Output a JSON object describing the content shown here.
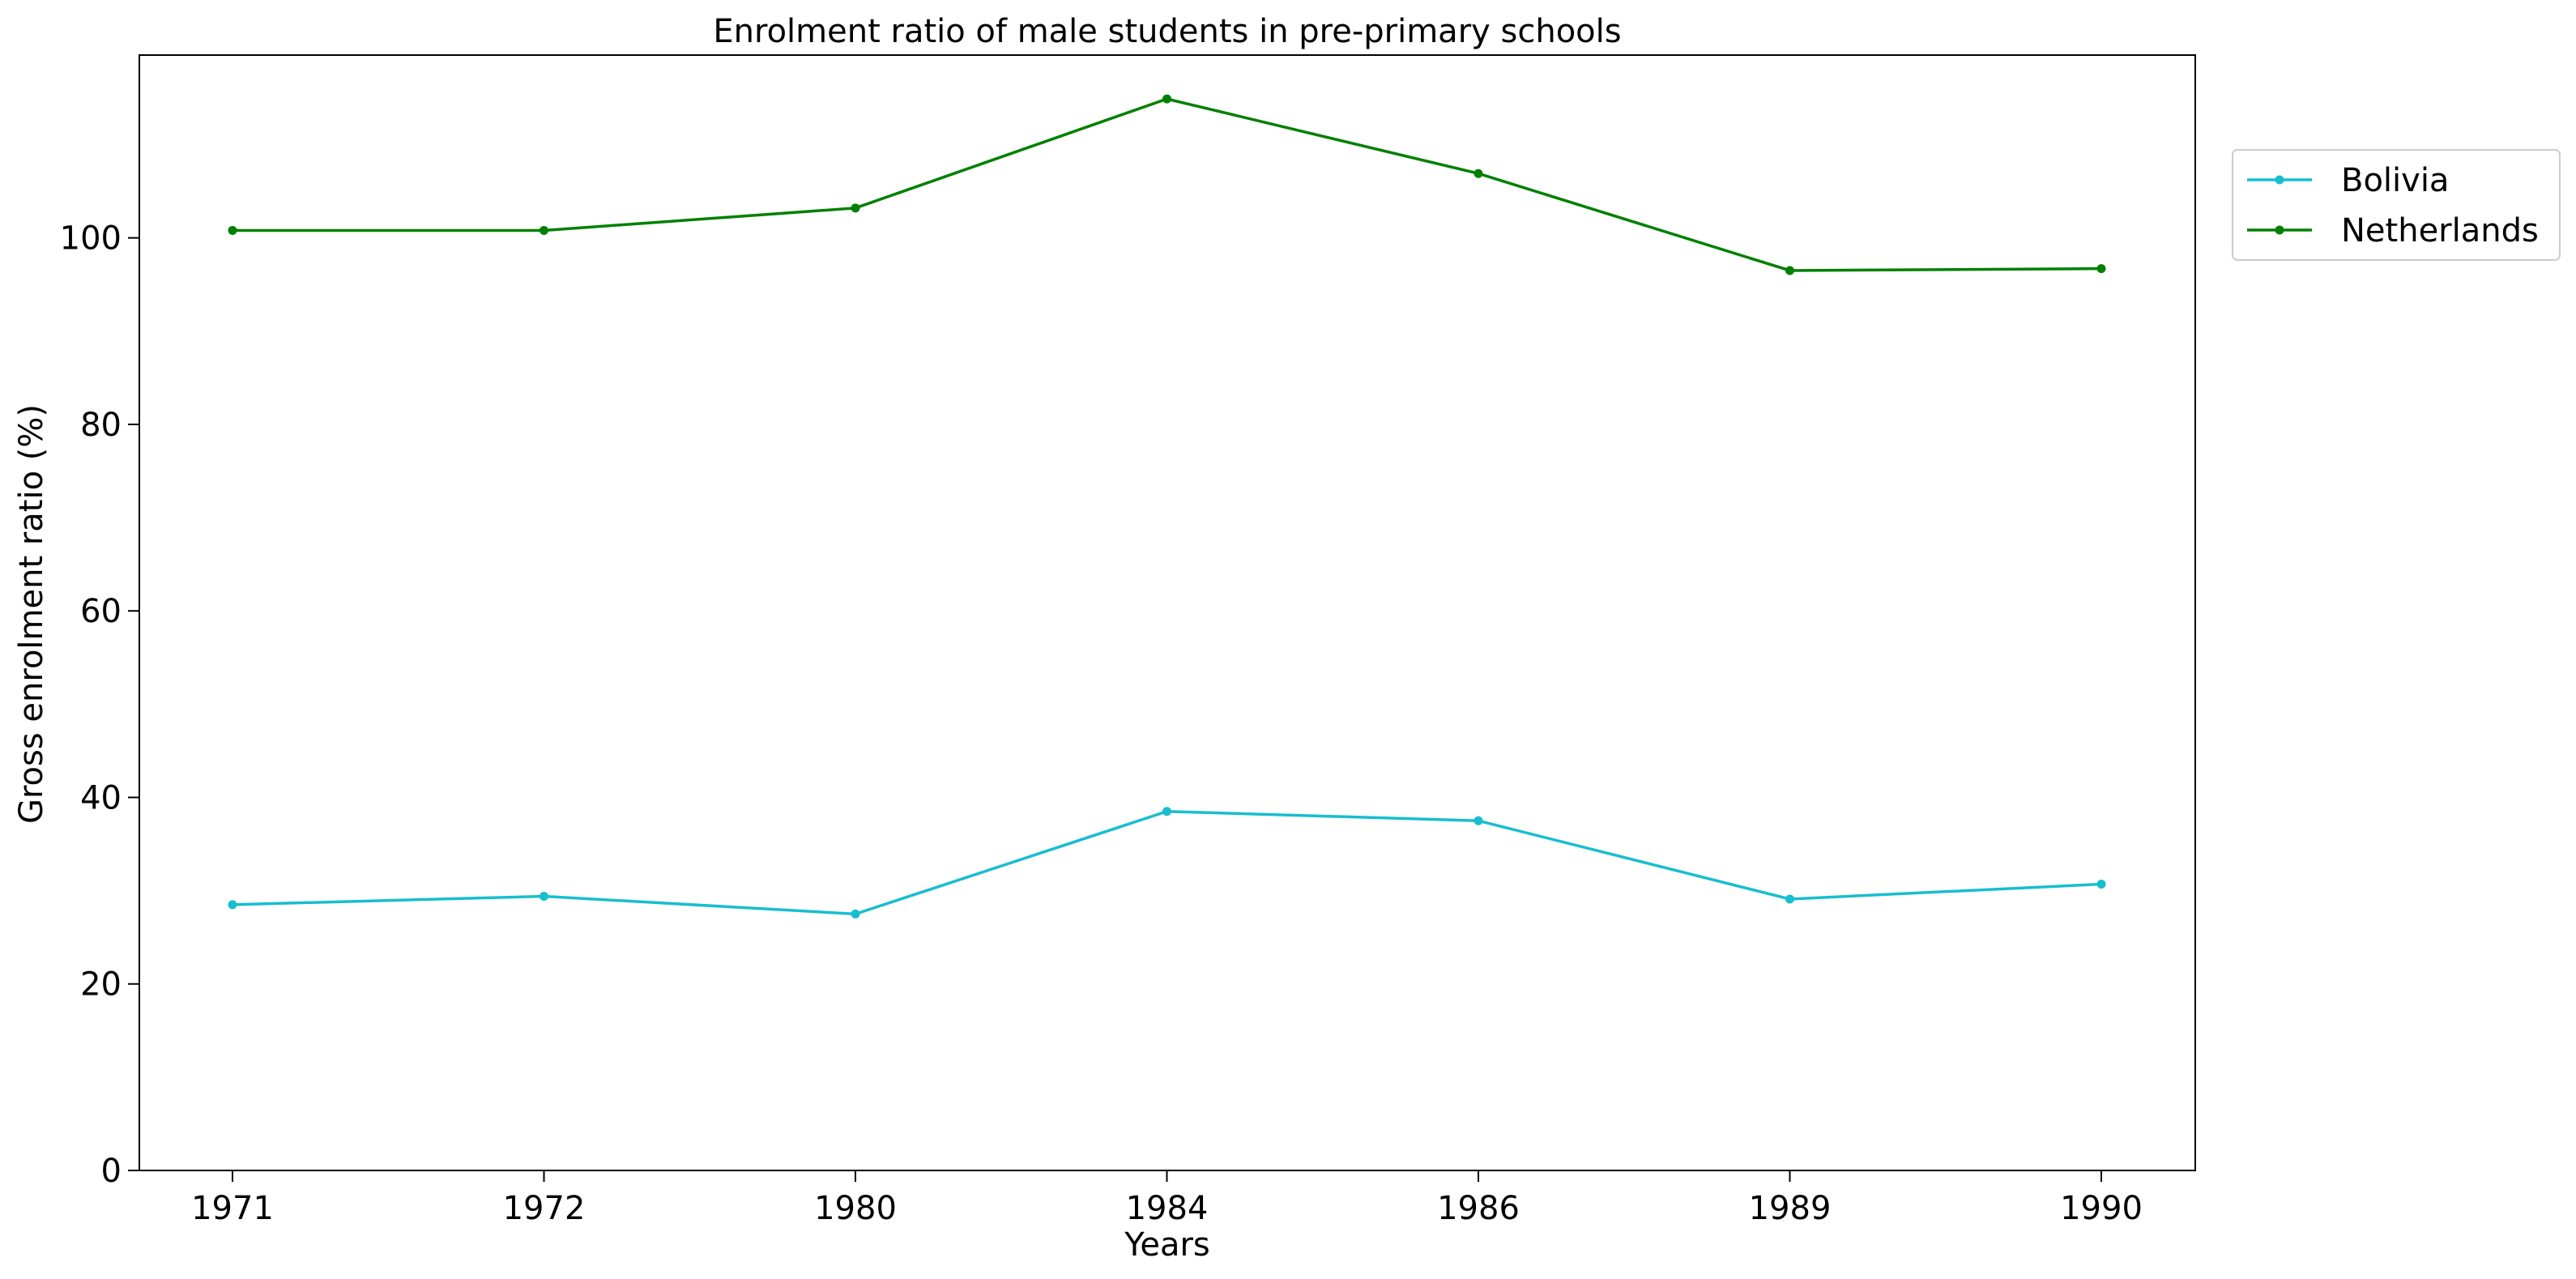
{
  "chart_data": {
    "type": "line",
    "title": "Enrolment ratio of male students in pre-primary schools",
    "xlabel": "Years",
    "ylabel": "Gross enrolment ratio (%)",
    "categories": [
      "1971",
      "1972",
      "1980",
      "1984",
      "1986",
      "1989",
      "1990"
    ],
    "ylim": [
      0,
      119.6
    ],
    "yticks": [
      0,
      20,
      40,
      60,
      80,
      100
    ],
    "grid": false,
    "legend_position": "outside-top-right",
    "series": [
      {
        "name": "Bolivia",
        "color": "#17becf",
        "values": [
          28.5,
          29.4,
          27.5,
          38.5,
          37.5,
          29.1,
          30.7
        ]
      },
      {
        "name": "Netherlands",
        "color": "#008000",
        "values": [
          100.8,
          100.8,
          103.2,
          114.9,
          106.9,
          96.5,
          96.7
        ]
      }
    ]
  }
}
